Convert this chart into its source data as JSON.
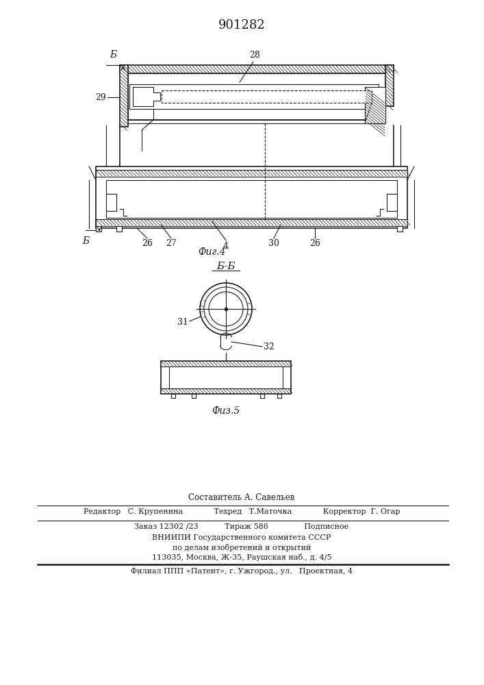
{
  "title": "901282",
  "bg_color": "#f5f5f0",
  "line_color": "#1a1a1a",
  "hatch_color": "#1a1a1a",
  "fig4_label": "Фиг.4",
  "fig5_label": "Физ.5",
  "section_label": "Б-Б",
  "labels": {
    "5_top": "Б",
    "5_bot": "Б",
    "28": "28",
    "29": "29",
    "26a": "26",
    "27": "27",
    "4": "4",
    "30": "30",
    "26b": "26",
    "31": "31",
    "32": "32"
  },
  "footer_lines": [
    "Составитель А. Савельев",
    "Редактор   С. Крупенина             Техред   Т.Маточка             Корректор  Г. Огар",
    "Заказ 12302 /23           Тираж 586               Подписное",
    "ВНИИПИ Государственного комитета СССР",
    "по делам изобретений и открытий",
    "113035, Москва, Ж-35, Раушская наб., д. 4/5",
    "Филиал ППП «Патент», г. Ужгород., ул.   Проектная, 4"
  ]
}
